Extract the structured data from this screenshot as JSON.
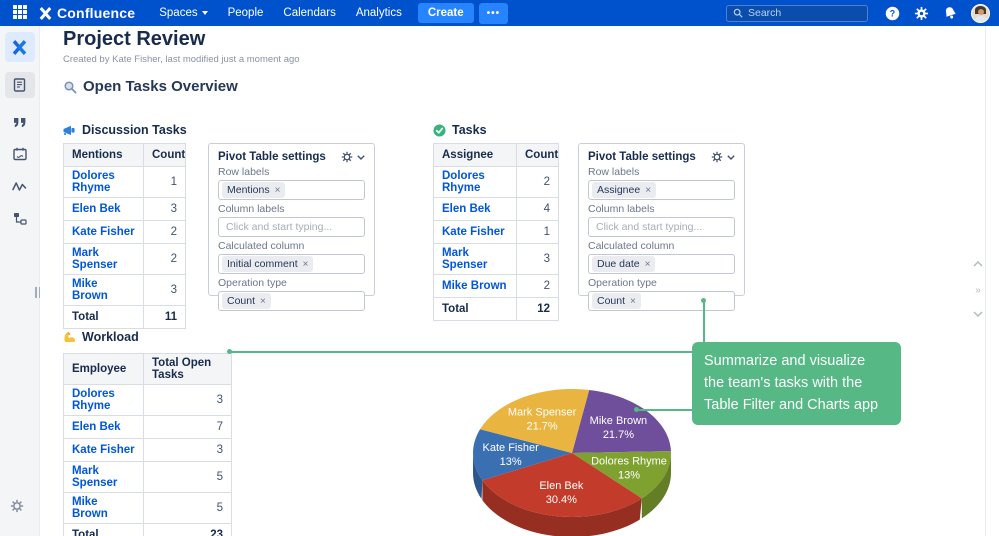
{
  "nav": {
    "brand": "Confluence",
    "items": [
      {
        "label": "Spaces",
        "has_chevron": true
      },
      {
        "label": "People",
        "has_chevron": false
      },
      {
        "label": "Calendars",
        "has_chevron": false
      },
      {
        "label": "Analytics",
        "has_chevron": false
      }
    ],
    "create_label": "Create",
    "more_label": "•••",
    "search_placeholder": "Search"
  },
  "page": {
    "title": "Project Review",
    "byline": "Created by Kate Fisher, last modified just a moment ago",
    "section_heading": "Open Tasks Overview"
  },
  "sections": {
    "discussion_heading": "Discussion Tasks",
    "tasks_heading": "Tasks",
    "workload_heading": "Workload"
  },
  "tables": [
    {
      "id": "discussion-table",
      "columns": [
        "Mentions",
        "Count"
      ],
      "rows": [
        [
          "Dolores Rhyme",
          "1"
        ],
        [
          "Elen Bek",
          "3"
        ],
        [
          "Kate Fisher",
          "2"
        ],
        [
          "Mark Spenser",
          "2"
        ],
        [
          "Mike Brown",
          "3"
        ]
      ],
      "total": [
        "Total",
        "11"
      ]
    },
    {
      "id": "tasks-table",
      "columns": [
        "Assignee",
        "Count"
      ],
      "rows": [
        [
          "Dolores Rhyme",
          "2"
        ],
        [
          "Elen Bek",
          "4"
        ],
        [
          "Kate Fisher",
          "1"
        ],
        [
          "Mark Spenser",
          "3"
        ],
        [
          "Mike Brown",
          "2"
        ]
      ],
      "total": [
        "Total",
        "12"
      ]
    },
    {
      "id": "workload-table",
      "columns": [
        "Employee",
        "Total Open Tasks"
      ],
      "rows": [
        [
          "Dolores Rhyme",
          "3"
        ],
        [
          "Elen Bek",
          "7"
        ],
        [
          "Kate Fisher",
          "3"
        ],
        [
          "Mark Spenser",
          "5"
        ],
        [
          "Mike Brown",
          "5"
        ]
      ],
      "total": [
        "Total",
        "23"
      ]
    }
  ],
  "pivots": [
    {
      "id": "pivot-discussion",
      "title": "Pivot Table settings",
      "fields": [
        {
          "label": "Row labels",
          "token": "Mentions"
        },
        {
          "label": "Column labels",
          "placeholder": "Click and start typing..."
        },
        {
          "label": "Calculated column",
          "token": "Initial comment"
        },
        {
          "label": "Operation type",
          "token": "Count"
        }
      ]
    },
    {
      "id": "pivot-tasks",
      "title": "Pivot Table settings",
      "fields": [
        {
          "label": "Row labels",
          "token": "Assignee"
        },
        {
          "label": "Column labels",
          "placeholder": "Click and start typing..."
        },
        {
          "label": "Calculated column",
          "token": "Due date"
        },
        {
          "label": "Operation type",
          "token": "Count"
        }
      ]
    }
  ],
  "callout": {
    "text": "Summarize and visualize the team's tasks with the Table Filter and Charts app",
    "color": "#55B885"
  },
  "chart_data": {
    "type": "pie",
    "style": "3d",
    "title": "",
    "start_angle_deg_clockwise_from_top": 10,
    "slices": [
      {
        "name": "Mike Brown",
        "value": 21.7,
        "pct_label": "21.7%",
        "color": "#6F4E9C"
      },
      {
        "name": "Dolores Rhyme",
        "value": 13.0,
        "pct_label": "13%",
        "color": "#7FA12F"
      },
      {
        "name": "Elen Bek",
        "value": 30.4,
        "pct_label": "30.4%",
        "color": "#C23B2B"
      },
      {
        "name": "Kate Fisher",
        "value": 13.0,
        "pct_label": "13%",
        "color": "#3A70B1"
      },
      {
        "name": "Mark Spenser",
        "value": 21.7,
        "pct_label": "21.7%",
        "color": "#EAB440"
      }
    ],
    "legend": "none",
    "labels_on_slices": true
  },
  "icons": {
    "double_chevron_right": "»",
    "token_remove": "×"
  },
  "colors": {
    "nav_blue": "#0052CC",
    "create_blue": "#2684FF",
    "link_blue": "#0057D8",
    "green_accent": "#55B885"
  }
}
